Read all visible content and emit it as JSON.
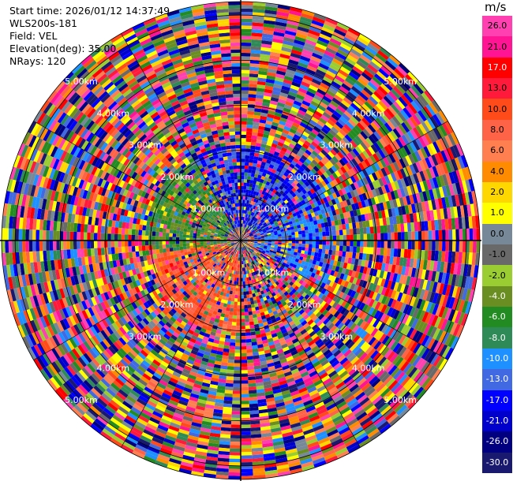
{
  "header": {
    "start_time": "Start time: 2026/01/12 14:37:49",
    "instrument": "WLS200s-181",
    "field": "Field: VEL",
    "elevation": "Elevation(deg): 35.00",
    "nrays": "NRays: 120"
  },
  "colorbar": {
    "unit": "m/s",
    "ticks": [
      "26.0",
      "21.0",
      "17.0",
      "13.0",
      "10.0",
      "8.0",
      "6.0",
      "4.0",
      "2.0",
      "1.0",
      "0.0",
      "-1.0",
      "-2.0",
      "-4.0",
      "-6.0",
      "-8.0",
      "-10.0",
      "-13.0",
      "-17.0",
      "-21.0",
      "-26.0",
      "-30.0"
    ],
    "colors": [
      "#ff40b0",
      "#ff1493",
      "#ff0000",
      "#ff1a3c",
      "#ff4a1a",
      "#ff6347",
      "#ff7f50",
      "#ff8c00",
      "#ffd700",
      "#ffff00",
      "#778899",
      "#696969",
      "#9acd32",
      "#6b8e23",
      "#228b22",
      "#2e8b57",
      "#1e90ff",
      "#4169e1",
      "#0000ff",
      "#0000cd",
      "#000080",
      "#191970"
    ]
  },
  "range_labels": [
    "1.00km",
    "2.00km",
    "3.00km",
    "4.00km",
    "5.00km"
  ],
  "chart_data": {
    "type": "heatmap",
    "projection": "polar-ppi",
    "field": "VEL",
    "units": "m/s",
    "nrays": 120,
    "elevation_deg": 35.0,
    "range_rings_km": [
      1,
      2,
      3,
      4,
      5
    ],
    "value_range": [
      -30,
      26
    ]
  }
}
